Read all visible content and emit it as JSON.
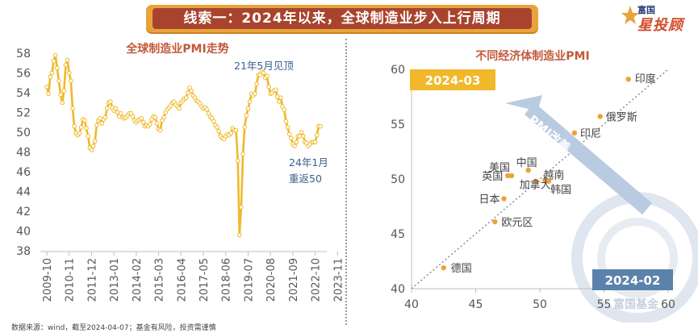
{
  "header": {
    "title": "线索一：2024年以来，全球制造业步入上行周期",
    "logo_line1": "富国",
    "logo_line2": "星投顾"
  },
  "footer": {
    "source": "数据来源：wind，截至2024-04-07；基金有风险，投资需谨慎"
  },
  "watermark": "富国基金",
  "chart_data": [
    {
      "type": "line",
      "title": "全球制造业PMI走势",
      "xlabel": "",
      "ylabel": "",
      "ylim": [
        38,
        58
      ],
      "yticks": [
        38,
        40,
        42,
        44,
        46,
        48,
        50,
        52,
        54,
        56,
        58
      ],
      "xticks": [
        "2009-10",
        "2010-11",
        "2011-12",
        "2013-01",
        "2014-02",
        "2015-03",
        "2016-04",
        "2017-05",
        "2018-06",
        "2019-07",
        "2020-08",
        "2021-09",
        "2022-10",
        "2023-11"
      ],
      "series": [
        {
          "color": "#f0b82a",
          "x_start": "2009-10",
          "values": [
            54.6,
            53.9,
            55.6,
            56.0,
            57.2,
            57.8,
            56.5,
            55.2,
            53.8,
            53.0,
            54.2,
            56.8,
            57.3,
            56.0,
            55.2,
            52.4,
            50.6,
            49.9,
            49.7,
            49.9,
            50.5,
            51.3,
            51.2,
            50.4,
            49.6,
            48.4,
            48.2,
            48.6,
            49.1,
            50.7,
            51.2,
            51.4,
            50.9,
            51.3,
            51.5,
            52.4,
            53.0,
            53.1,
            52.5,
            52.2,
            52.4,
            52.0,
            51.6,
            51.9,
            51.5,
            51.4,
            51.5,
            51.7,
            51.9,
            51.9,
            51.6,
            51.2,
            51.0,
            51.2,
            51.3,
            51.4,
            51.0,
            50.6,
            50.7,
            50.6,
            50.8,
            51.3,
            51.6,
            51.5,
            50.9,
            50.3,
            50.2,
            51.2,
            51.5,
            52.0,
            52.3,
            52.5,
            52.7,
            53.0,
            53.1,
            52.8,
            52.6,
            52.4,
            53.0,
            53.2,
            53.4,
            53.5,
            54.0,
            54.5,
            54.2,
            53.7,
            53.5,
            53.2,
            53.1,
            52.9,
            52.6,
            52.4,
            52.5,
            52.3,
            51.9,
            51.6,
            51.4,
            51.1,
            50.7,
            50.5,
            50.1,
            49.6,
            49.4,
            49.3,
            49.6,
            49.8,
            49.7,
            49.9,
            50.4,
            50.2,
            50.2,
            47.1,
            39.6,
            42.4,
            47.8,
            50.5,
            51.7,
            52.4,
            53.1,
            53.9,
            53.7,
            53.9,
            54.9,
            55.8,
            55.8,
            56.1,
            56.0,
            55.5,
            55.7,
            54.6,
            53.9,
            54.0,
            54.2,
            54.3,
            53.6,
            53.1,
            53.5,
            52.6,
            52.3,
            51.1,
            50.5,
            49.8,
            49.4,
            48.8,
            48.6,
            49.0,
            49.6,
            49.6,
            50.0,
            49.6,
            49.0,
            48.9,
            48.6,
            48.8,
            49.0,
            49.0,
            49.0,
            49.7,
            50.6,
            50.6
          ]
        }
      ],
      "annotations": [
        {
          "text": "21年5月见顶",
          "color": "#3a5f8c"
        },
        {
          "text": "24年1月",
          "color": "#3a5f8c"
        },
        {
          "text": "重返50",
          "color": "#3a5f8c"
        }
      ]
    },
    {
      "type": "scatter",
      "title": "不同经济体制造业PMI",
      "xlabel": "2024-02",
      "ylabel": "2024-03",
      "xlim": [
        40,
        60
      ],
      "ylim": [
        40,
        60
      ],
      "xticks": [
        40,
        45,
        50,
        55,
        60
      ],
      "yticks": [
        40,
        45,
        50,
        55,
        60
      ],
      "diagonal": true,
      "arrow_label": "PMI改善",
      "point_color": "#e9a33b",
      "points": [
        {
          "name": "印度",
          "x": 56.9,
          "y": 59.1
        },
        {
          "name": "俄罗斯",
          "x": 54.7,
          "y": 55.7
        },
        {
          "name": "印尼",
          "x": 52.7,
          "y": 54.2
        },
        {
          "name": "中国",
          "x": 49.1,
          "y": 50.8
        },
        {
          "name": "美国",
          "x": 47.8,
          "y": 50.3
        },
        {
          "name": "英国",
          "x": 47.5,
          "y": 50.3
        },
        {
          "name": "越南",
          "x": 50.4,
          "y": 49.9
        },
        {
          "name": "加拿大",
          "x": 49.7,
          "y": 49.8
        },
        {
          "name": "韩国",
          "x": 50.7,
          "y": 49.8
        },
        {
          "name": "日本",
          "x": 47.2,
          "y": 48.2
        },
        {
          "name": "欧元区",
          "x": 46.5,
          "y": 46.1
        },
        {
          "name": "德国",
          "x": 42.5,
          "y": 41.9
        }
      ]
    }
  ]
}
